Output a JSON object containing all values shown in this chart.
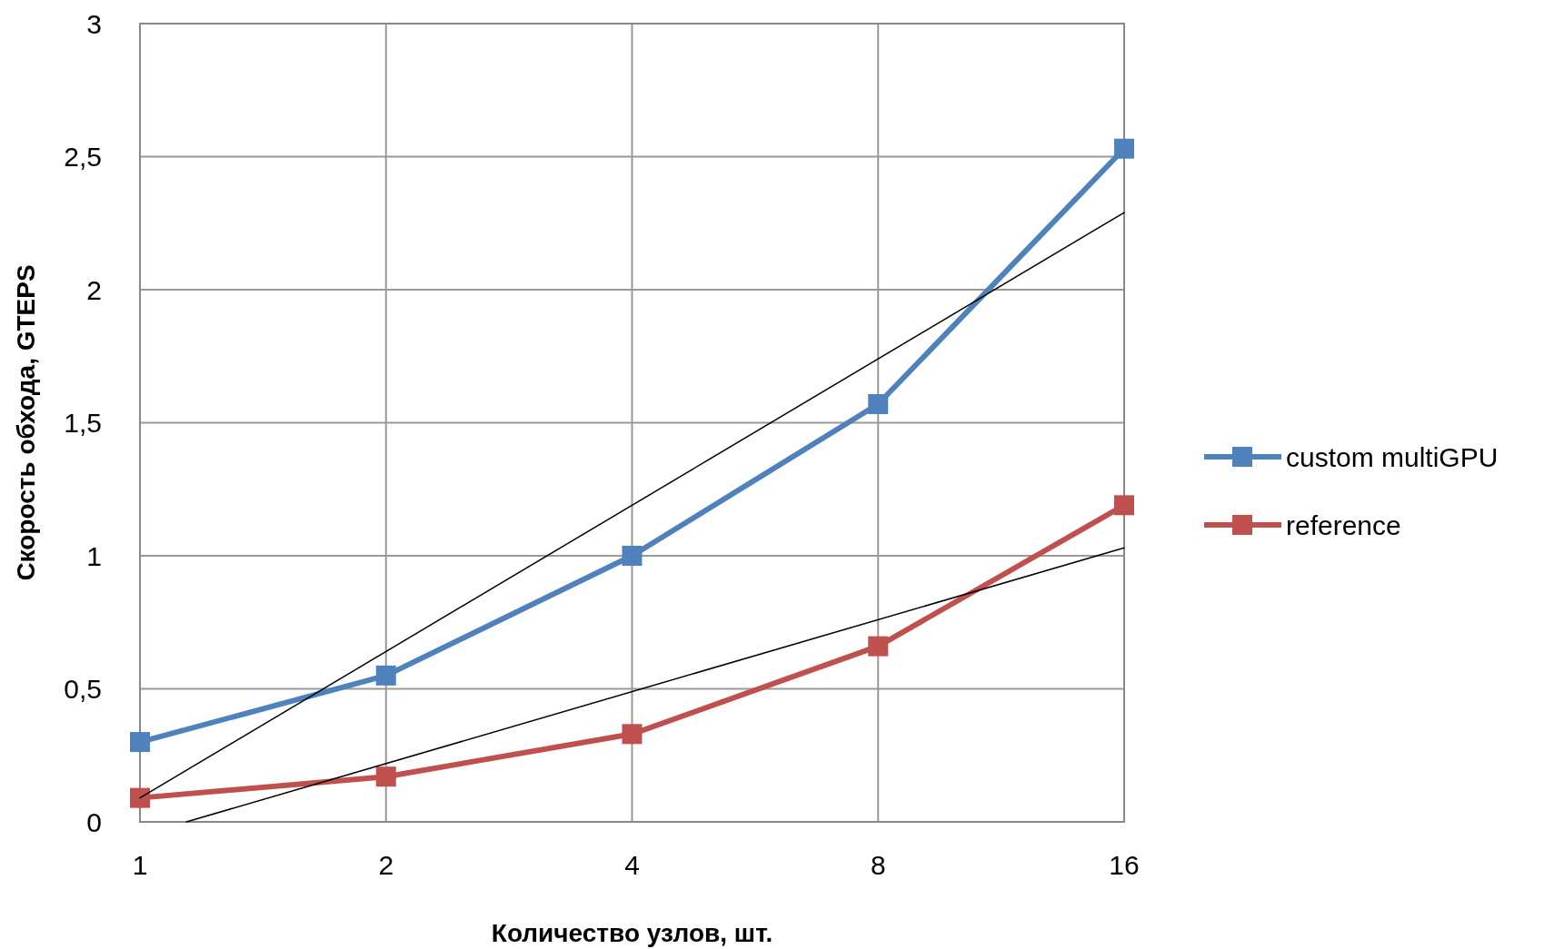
{
  "chart_data": {
    "type": "line",
    "xlabel": "Количество  узлов, шт.",
    "ylabel": "Скорость обхода, GTEPS",
    "x": [
      1,
      2,
      4,
      8,
      16
    ],
    "log": "x",
    "xlim": [
      1,
      16
    ],
    "xticks": [
      1,
      2,
      4,
      8,
      16
    ],
    "ylim": [
      0,
      3
    ],
    "yticks": [
      0,
      {
        "value": 0.5,
        "label": "0,5"
      },
      1,
      {
        "value": 1.5,
        "label": "1,5"
      },
      2,
      {
        "value": 2.5,
        "label": "2,5"
      },
      3
    ],
    "grid": true,
    "legend": "right",
    "marker": "square",
    "line_style": "solid",
    "series": [
      {
        "name": "custom multiGPU",
        "color": "#4f81bd",
        "values": [
          0.3,
          0.55,
          1.0,
          1.57,
          2.53
        ]
      },
      {
        "name": "reference",
        "color": "#c0504d",
        "values": [
          0.09,
          0.17,
          0.33,
          0.66,
          1.19
        ]
      },
      {
        "type": "line",
        "color": "#000000",
        "marker": "none",
        "x": [
          1,
          16
        ],
        "values": [
          0.09,
          2.29
        ]
      },
      {
        "type": "line",
        "color": "#000000",
        "marker": "none",
        "x": [
          1.14,
          16
        ],
        "values": [
          0,
          1.03
        ]
      }
    ]
  }
}
